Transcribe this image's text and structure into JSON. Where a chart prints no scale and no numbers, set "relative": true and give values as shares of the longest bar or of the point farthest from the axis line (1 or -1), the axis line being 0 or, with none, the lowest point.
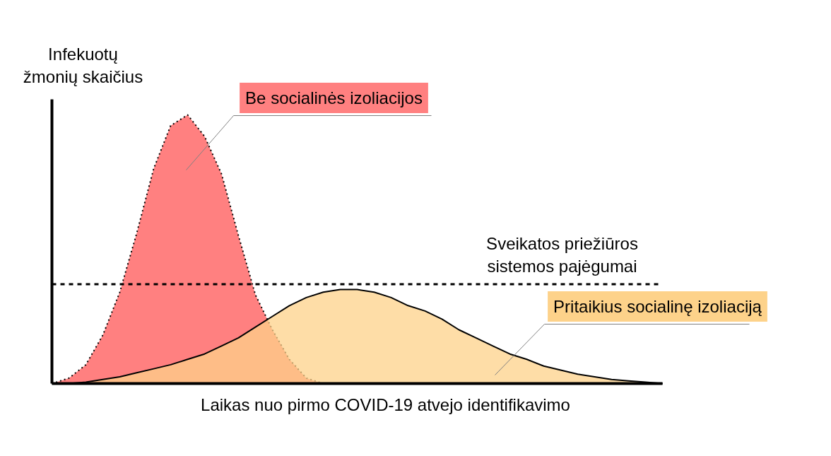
{
  "chart_data": {
    "type": "area",
    "relative": true,
    "xlabel": "Laikas nuo pirmo COVID-19 atvejo identifikavimo",
    "ylabel": "Infekuotų\nžmonių skaičius",
    "categories": [
      null,
      null,
      null,
      null,
      null,
      null,
      null,
      null,
      null,
      null,
      null,
      null,
      null,
      null,
      null,
      null,
      null,
      null,
      null,
      null,
      null,
      null,
      null,
      null,
      null,
      null,
      null,
      null,
      null,
      null,
      null,
      null,
      null,
      null,
      null,
      null,
      null
    ],
    "series": [
      {
        "name": "Be socialinės izoliacijos",
        "color": "#ff8080",
        "line_style": "dotted",
        "values": [
          0,
          0.02,
          0.07,
          0.18,
          0.34,
          0.56,
          0.8,
          0.96,
          1.0,
          0.92,
          0.78,
          0.55,
          0.33,
          0.2,
          0.09,
          0.02,
          0,
          0,
          0,
          0,
          0,
          0,
          0,
          0,
          0,
          0,
          0,
          0,
          0,
          0,
          0,
          0,
          0,
          0,
          0,
          0,
          0
        ]
      },
      {
        "name": "Pritaikius socialinę izoliaciją",
        "color": "#fdd28a",
        "line_style": "solid",
        "values": [
          0,
          0,
          0.005,
          0.015,
          0.025,
          0.04,
          0.055,
          0.07,
          0.09,
          0.11,
          0.14,
          0.17,
          0.21,
          0.25,
          0.29,
          0.32,
          0.34,
          0.35,
          0.35,
          0.34,
          0.32,
          0.29,
          0.27,
          0.24,
          0.2,
          0.17,
          0.14,
          0.11,
          0.09,
          0.065,
          0.05,
          0.035,
          0.025,
          0.015,
          0.01,
          0.005,
          0
        ]
      }
    ],
    "ref_lines": [
      {
        "axis": "y",
        "value": 0.37,
        "label": "Sveikatos priežiūros\nsistemos pajėgumai",
        "color": "#000000",
        "line_style": "dashed"
      }
    ],
    "grid": false
  }
}
